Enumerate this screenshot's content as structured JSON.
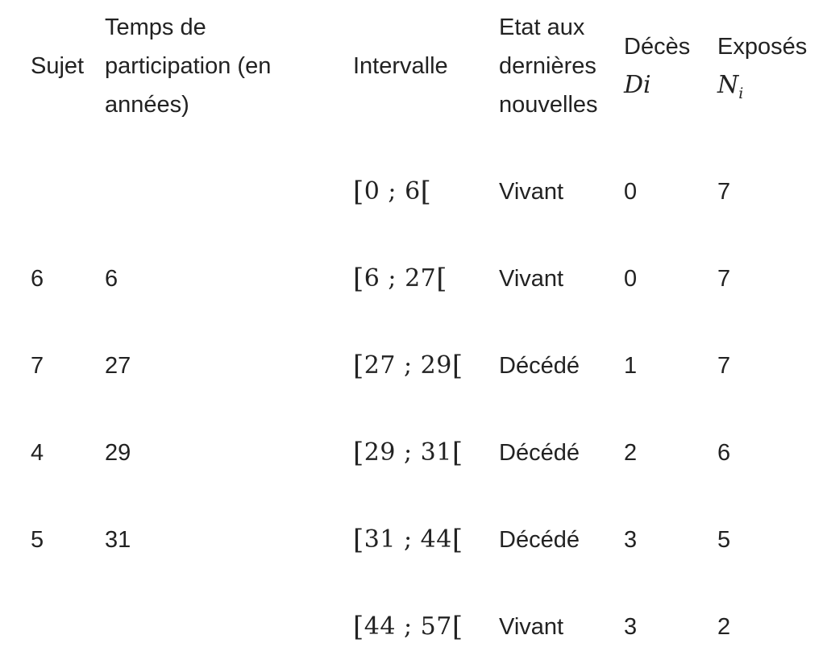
{
  "table": {
    "headers": {
      "subject": "Sujet",
      "time_line1": "Temps de",
      "time_line2": "participation (en",
      "time_line3": "années)",
      "interval": "Intervalle",
      "status_line1": "Etat aux",
      "status_line2": "dernières",
      "status_line3": "nouvelles",
      "deaths_label": "Décès",
      "deaths_symbol": "Di",
      "exposed_label": "Exposés",
      "exposed_symbol": "N",
      "exposed_subscript": "i"
    },
    "rows": [
      {
        "subject": "",
        "time": "",
        "interval_open": "[",
        "interval_low": "0",
        "interval_sep": ";",
        "interval_high": "6",
        "interval_close": "[",
        "status": "Vivant",
        "deaths": "0",
        "exposed": "7"
      },
      {
        "subject": "6",
        "time": "6",
        "interval_open": "[",
        "interval_low": "6",
        "interval_sep": ";",
        "interval_high": "27",
        "interval_close": "[",
        "status": "Vivant",
        "deaths": "0",
        "exposed": "7"
      },
      {
        "subject": "7",
        "time": "27",
        "interval_open": "[",
        "interval_low": "27",
        "interval_sep": ";",
        "interval_high": "29",
        "interval_close": "[",
        "status": "Décédé",
        "deaths": "1",
        "exposed": "7"
      },
      {
        "subject": "4",
        "time": "29",
        "interval_open": "[",
        "interval_low": "29",
        "interval_sep": ";",
        "interval_high": "31",
        "interval_close": "[",
        "status": "Décédé",
        "deaths": "2",
        "exposed": "6"
      },
      {
        "subject": "5",
        "time": "31",
        "interval_open": "[",
        "interval_low": "31",
        "interval_sep": ";",
        "interval_high": "44",
        "interval_close": "[",
        "status": "Décédé",
        "deaths": "3",
        "exposed": "5"
      },
      {
        "subject": "",
        "time": "",
        "interval_open": "[",
        "interval_low": "44",
        "interval_sep": ";",
        "interval_high": "57",
        "interval_close": "[",
        "status": "Vivant",
        "deaths": "3",
        "exposed": "2"
      }
    ]
  }
}
